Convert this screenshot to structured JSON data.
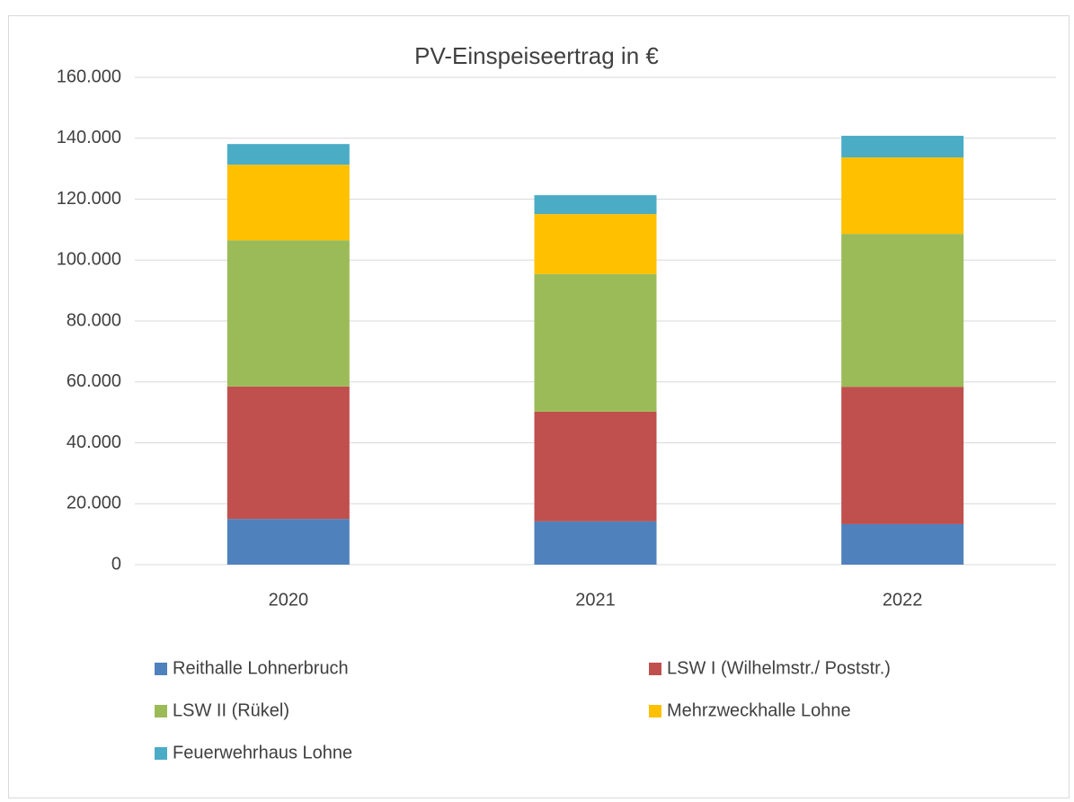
{
  "chart_data": {
    "type": "stacked_bar",
    "title": "PV-Einspeiseertrag in €",
    "categories": [
      "2020",
      "2021",
      "2022"
    ],
    "series": [
      {
        "name": "Reithalle Lohnerbruch",
        "color": "#4f81bd",
        "values": [
          15000,
          14200,
          13300
        ]
      },
      {
        "name": "LSW I (Wilhelmstr./ Poststr.)",
        "color": "#c0504d",
        "values": [
          43500,
          36000,
          45100
        ]
      },
      {
        "name": "LSW II (Rükel)",
        "color": "#9bbb59",
        "values": [
          48000,
          45200,
          50200
        ]
      },
      {
        "name": "Mehrzweckhalle Lohne",
        "color": "#ffc000",
        "values": [
          24800,
          19700,
          25100
        ]
      },
      {
        "name": "Feuerwehrhaus Lohne",
        "color": "#4bacc6",
        "values": [
          6800,
          6200,
          7100
        ]
      }
    ],
    "ylim": [
      0,
      160000
    ],
    "yticks": [
      0,
      {
        "value": 20000,
        "label": "20.000"
      },
      {
        "value": 40000,
        "label": "40.000"
      },
      {
        "value": 60000,
        "label": "60.000"
      },
      {
        "value": 80000,
        "label": "80.000"
      },
      {
        "value": 100000,
        "label": "100.000"
      },
      {
        "value": 120000,
        "label": "120.000"
      },
      {
        "value": 140000,
        "label": "140.000"
      },
      {
        "value": 160000,
        "label": "160.000"
      }
    ],
    "grid": true,
    "legend": "bottom"
  }
}
